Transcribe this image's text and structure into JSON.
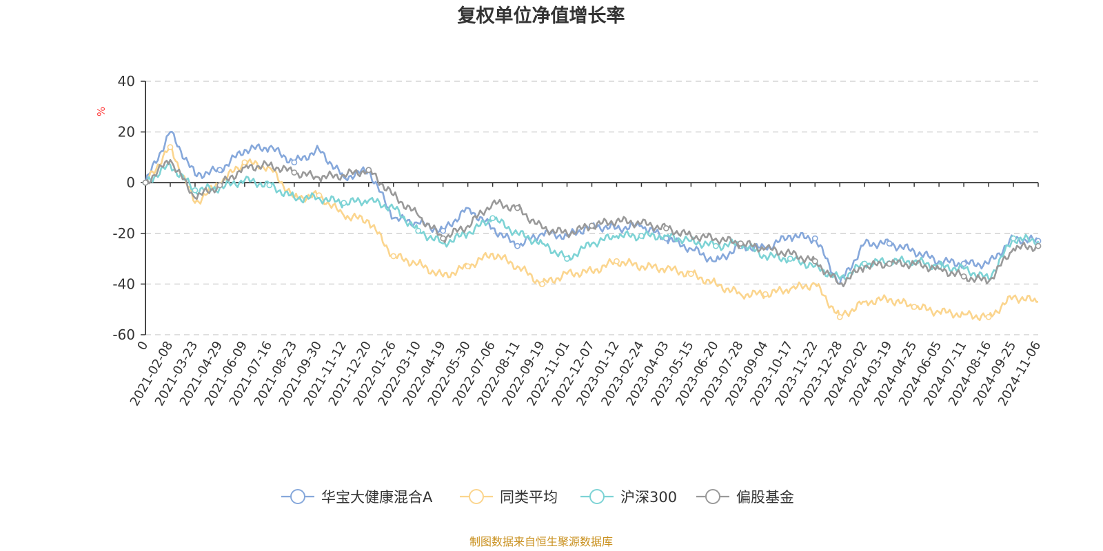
{
  "chart_data": {
    "type": "line",
    "title": "复权单位净值增长率",
    "ylabel": "%",
    "ylim": [
      -60,
      40
    ],
    "yticks": [
      40,
      20,
      0,
      -20,
      -40,
      -60
    ],
    "x_tick_labels": [
      "0",
      "2021-02-08",
      "2021-03-23",
      "2021-04-29",
      "2021-06-09",
      "2021-07-16",
      "2021-08-23",
      "2021-09-30",
      "2021-11-12",
      "2021-12-20",
      "2022-01-26",
      "2022-03-10",
      "2022-04-19",
      "2022-05-30",
      "2022-07-06",
      "2022-08-11",
      "2022-09-19",
      "2022-11-01",
      "2022-12-07",
      "2023-01-12",
      "2023-02-24",
      "2023-04-03",
      "2023-05-15",
      "2023-06-20",
      "2023-07-28",
      "2023-09-04",
      "2023-10-17",
      "2023-11-22",
      "2023-12-28",
      "2024-02-02",
      "2024-03-19",
      "2024-04-25",
      "2024-06-05",
      "2024-07-11",
      "2024-08-16",
      "2024-09-25",
      "2024-11-06"
    ],
    "grid": true,
    "legend_position": "bottom",
    "series": [
      {
        "name": "华宝大健康混合A",
        "color": "#86a8db",
        "values": [
          0,
          20,
          3,
          5,
          13,
          14,
          8,
          13,
          2,
          5,
          -14,
          -16,
          -19,
          -10,
          -18,
          -25,
          -20,
          -21,
          -17,
          -18,
          -17,
          -22,
          -26,
          -31,
          -25,
          -26,
          -21,
          -22,
          -40,
          -24,
          -24,
          -27,
          -31,
          -32,
          -32,
          -22,
          -23
        ]
      },
      {
        "name": "同类平均",
        "color": "#fbd58e",
        "values": [
          0,
          14,
          -8,
          0,
          8,
          6,
          -6,
          -5,
          -13,
          -15,
          -29,
          -32,
          -37,
          -33,
          -28,
          -33,
          -40,
          -36,
          -35,
          -31,
          -33,
          -34,
          -36,
          -40,
          -44,
          -44,
          -42,
          -40,
          -53,
          -47,
          -46,
          -49,
          -51,
          -52,
          -53,
          -45,
          -47
        ]
      },
      {
        "name": "沪深300",
        "color": "#7dd3d5",
        "values": [
          0,
          7,
          -3,
          -2,
          1,
          -1,
          -6,
          -6,
          -8,
          -7,
          -10,
          -19,
          -24,
          -20,
          -14,
          -20,
          -24,
          -30,
          -24,
          -21,
          -21,
          -21,
          -23,
          -25,
          -24,
          -29,
          -30,
          -33,
          -38,
          -32,
          -31,
          -31,
          -33,
          -34,
          -38,
          -22,
          -23
        ]
      },
      {
        "name": "偏股基金",
        "color": "#999999",
        "values": [
          0,
          9,
          -6,
          -1,
          6,
          7,
          4,
          2,
          3,
          5,
          -5,
          -13,
          -22,
          -17,
          -8,
          -10,
          -18,
          -20,
          -17,
          -15,
          -16,
          -18,
          -21,
          -22,
          -24,
          -26,
          -28,
          -31,
          -40,
          -33,
          -32,
          -32,
          -34,
          -37,
          -39,
          -26,
          -25
        ]
      }
    ]
  },
  "source_note": "制图数据来自恒生聚源数据库"
}
